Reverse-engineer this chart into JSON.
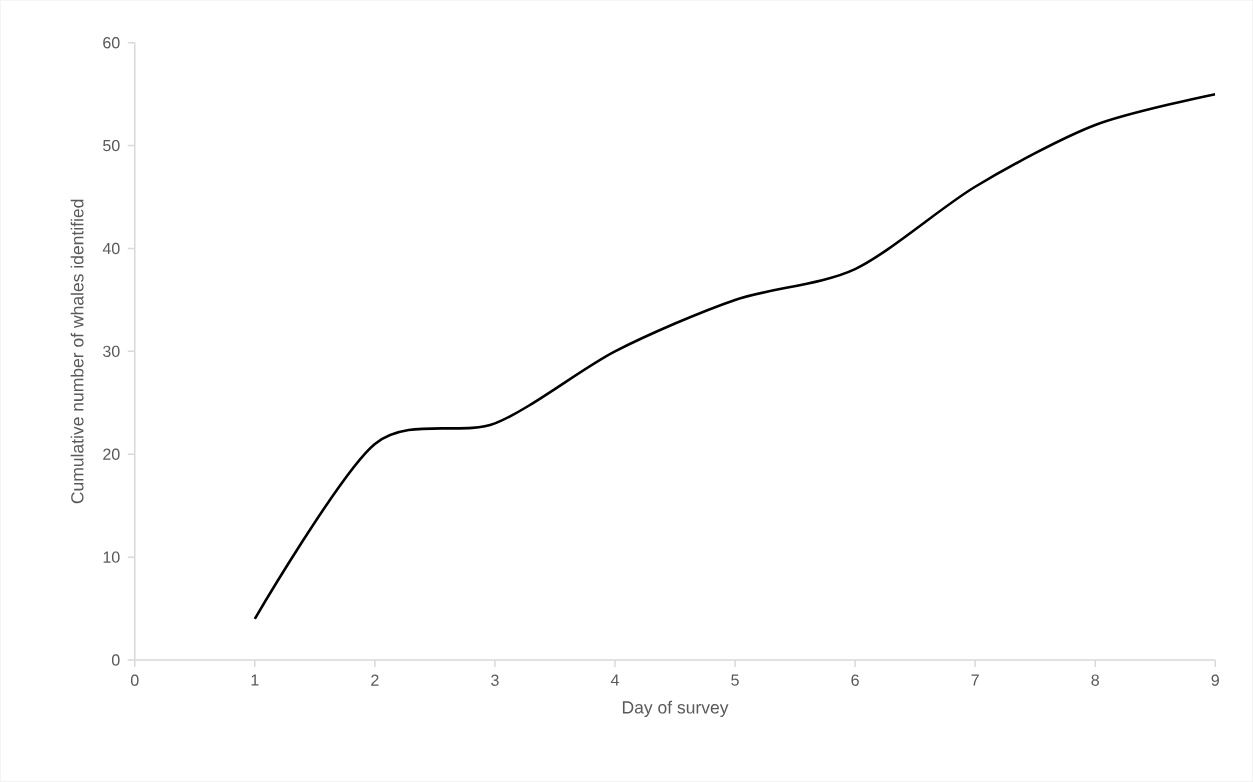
{
  "chart_data": {
    "type": "line",
    "xlabel": "Day of survey",
    "ylabel": "Cumulative number of whales identified",
    "x": [
      1,
      2,
      3,
      4,
      5,
      6,
      7,
      8,
      9
    ],
    "series": [
      {
        "color": "#000000",
        "values": [
          4,
          21,
          23,
          30,
          35,
          38,
          46,
          52,
          55
        ]
      }
    ],
    "xlim": [
      0,
      9
    ],
    "ylim": [
      0,
      60
    ],
    "xticks": [
      0,
      1,
      2,
      3,
      4,
      5,
      6,
      7,
      8,
      9
    ],
    "yticks": [
      0,
      10,
      20,
      30,
      40,
      50,
      60
    ],
    "grid": false,
    "marker": "none",
    "line_style": "solid"
  }
}
